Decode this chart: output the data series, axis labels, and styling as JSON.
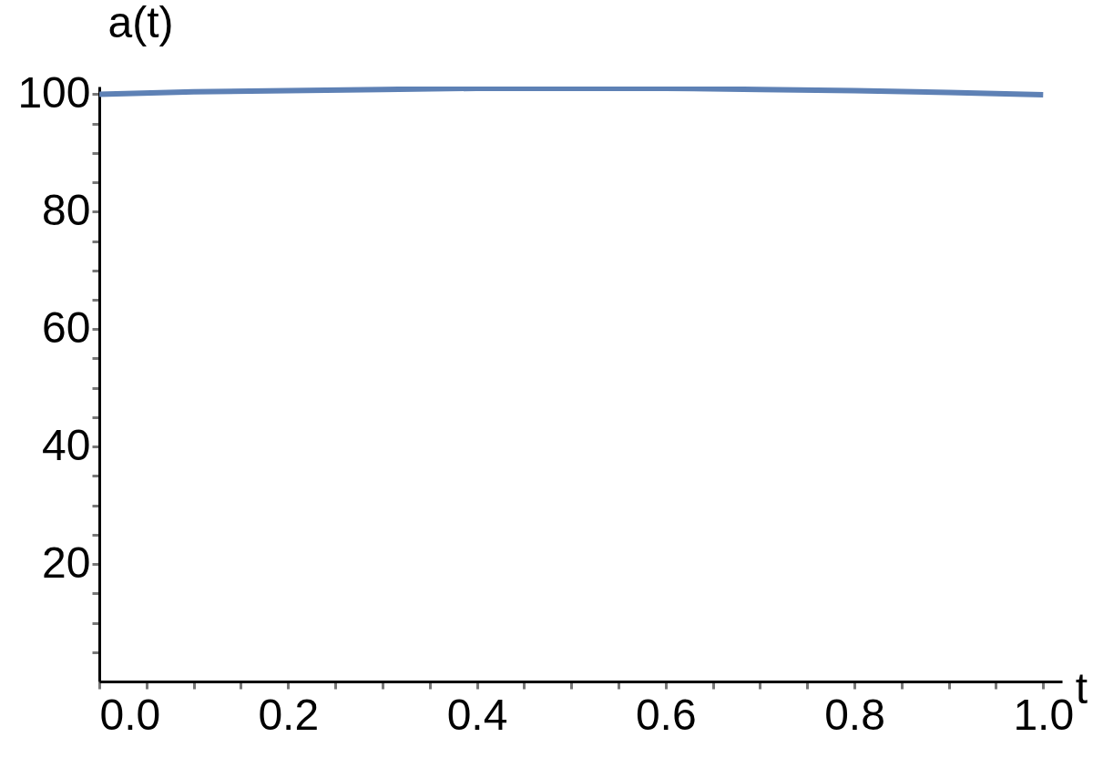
{
  "chart_data": {
    "type": "line",
    "xlabel": "t",
    "ylabel": "a(t)",
    "x": [
      0,
      0.1,
      0.2,
      0.3,
      0.4,
      0.5,
      0.6,
      0.7,
      0.8,
      0.9,
      1.0
    ],
    "series": [
      {
        "color": "#5e81b5",
        "values": [
          100,
          100.4,
          100.6,
          100.8,
          101,
          101,
          101,
          100.8,
          100.6,
          100.3,
          99.9
        ]
      }
    ],
    "xlim": [
      0,
      1.02
    ],
    "ylim": [
      0,
      101.3
    ],
    "xticks": [
      {
        "value": 0,
        "label": "0.0"
      },
      {
        "value": 0.05,
        "label": null
      },
      {
        "value": 0.1,
        "label": null
      },
      {
        "value": 0.15,
        "label": null
      },
      {
        "value": 0.2,
        "label": "0.2"
      },
      {
        "value": 0.25,
        "label": null
      },
      {
        "value": 0.3,
        "label": null
      },
      {
        "value": 0.35,
        "label": null
      },
      {
        "value": 0.4,
        "label": "0.4"
      },
      {
        "value": 0.45,
        "label": null
      },
      {
        "value": 0.5,
        "label": null
      },
      {
        "value": 0.55,
        "label": null
      },
      {
        "value": 0.6,
        "label": "0.6"
      },
      {
        "value": 0.65,
        "label": null
      },
      {
        "value": 0.7,
        "label": null
      },
      {
        "value": 0.75,
        "label": null
      },
      {
        "value": 0.8,
        "label": "0.8"
      },
      {
        "value": 0.85,
        "label": null
      },
      {
        "value": 0.9,
        "label": null
      },
      {
        "value": 0.95,
        "label": null
      },
      {
        "value": 1,
        "label": "1.0"
      }
    ],
    "yticks": [
      {
        "value": 5,
        "label": null
      },
      {
        "value": 10,
        "label": null
      },
      {
        "value": 15,
        "label": null
      },
      20,
      {
        "value": 25,
        "label": null
      },
      {
        "value": 30,
        "label": null
      },
      {
        "value": 35,
        "label": null
      },
      40,
      {
        "value": 45,
        "label": null
      },
      {
        "value": 50,
        "label": null
      },
      {
        "value": 55,
        "label": null
      },
      60,
      {
        "value": 65,
        "label": null
      },
      {
        "value": 70,
        "label": null
      },
      {
        "value": 75,
        "label": null
      },
      80,
      {
        "value": 85,
        "label": null
      },
      {
        "value": 90,
        "label": null
      },
      {
        "value": 95,
        "label": null
      },
      100
    ],
    "grid": false,
    "marker": "none",
    "line_style": "solid"
  }
}
